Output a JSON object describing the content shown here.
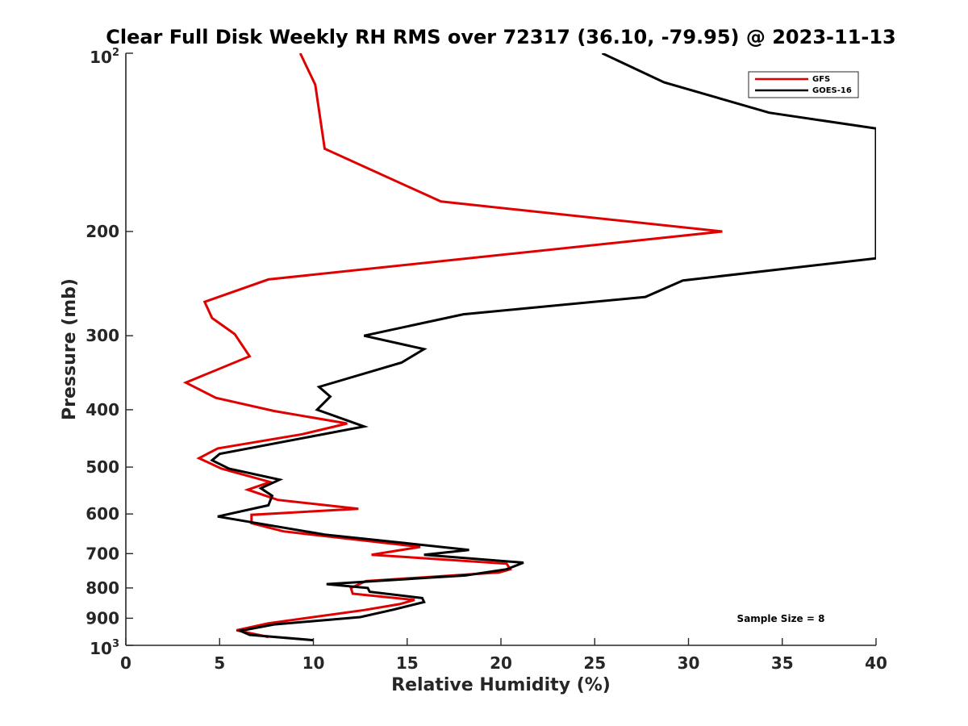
{
  "chart_data": {
    "type": "line",
    "title": "Clear Full Disk Weekly RH RMS over 72317 (36.10, -79.95) @ 2023-11-13",
    "xlabel": "Relative Humidity (%)",
    "ylabel": "Pressure (mb)",
    "xlim": [
      0,
      40
    ],
    "ylim": [
      100,
      1000
    ],
    "y_scale": "log",
    "y_reversed": true,
    "grid": false,
    "legend_position": "top-right",
    "x_ticks": [
      0,
      5,
      10,
      15,
      20,
      25,
      30,
      35,
      40
    ],
    "x_tick_labels": [
      "0",
      "5",
      "10",
      "15",
      "20",
      "25",
      "30",
      "35",
      "40"
    ],
    "y_ticks": [
      200,
      300,
      400,
      500,
      600,
      700,
      800,
      900
    ],
    "y_tick_labels": [
      "200",
      "300",
      "400",
      "500",
      "600",
      "700",
      "800",
      "900"
    ],
    "y_end_labels": {
      "top": "10",
      "top_exp": "2",
      "bottom": "10",
      "bottom_exp": "3"
    },
    "annotation": "Sample Size = 8",
    "series": [
      {
        "name": "GFS",
        "color": "#e00000",
        "points": [
          [
            9.3,
            100
          ],
          [
            10.1,
            113
          ],
          [
            10.6,
            145
          ],
          [
            16.8,
            178
          ],
          [
            31.8,
            200
          ],
          [
            7.6,
            241
          ],
          [
            4.2,
            263
          ],
          [
            4.6,
            280
          ],
          [
            5.8,
            298
          ],
          [
            6.6,
            325
          ],
          [
            3.2,
            360
          ],
          [
            4.8,
            382
          ],
          [
            7.9,
            402
          ],
          [
            11.8,
            422
          ],
          [
            9.4,
            440
          ],
          [
            4.9,
            465
          ],
          [
            3.9,
            483
          ],
          [
            5.1,
            503
          ],
          [
            7.7,
            530
          ],
          [
            6.5,
            546
          ],
          [
            8.1,
            568
          ],
          [
            12.4,
            588
          ],
          [
            6.7,
            602
          ],
          [
            6.7,
            622
          ],
          [
            8.4,
            642
          ],
          [
            15.7,
            682
          ],
          [
            13.1,
            703
          ],
          [
            20.3,
            728
          ],
          [
            20.5,
            744
          ],
          [
            19.9,
            753
          ],
          [
            12.8,
            779
          ],
          [
            12.0,
            800
          ],
          [
            12.1,
            818
          ],
          [
            15.4,
            838
          ],
          [
            14.6,
            852
          ],
          [
            12.7,
            872
          ],
          [
            7.6,
            918
          ],
          [
            5.9,
            943
          ],
          [
            7.6,
            968
          ]
        ]
      },
      {
        "name": "GOES-16",
        "color": "#000000",
        "points": [
          [
            25.4,
            100
          ],
          [
            28.7,
            112
          ],
          [
            34.3,
            126
          ],
          [
            40.0,
            134
          ],
          [
            40.0,
            222
          ],
          [
            29.7,
            242
          ],
          [
            27.7,
            258
          ],
          [
            18.0,
            276
          ],
          [
            12.7,
            300
          ],
          [
            15.9,
            316
          ],
          [
            14.7,
            333
          ],
          [
            10.3,
            366
          ],
          [
            10.9,
            380
          ],
          [
            10.2,
            400
          ],
          [
            12.7,
            427
          ],
          [
            5.0,
            475
          ],
          [
            4.6,
            487
          ],
          [
            5.5,
            503
          ],
          [
            8.2,
            525
          ],
          [
            7.2,
            543
          ],
          [
            7.8,
            559
          ],
          [
            7.6,
            580
          ],
          [
            4.9,
            606
          ],
          [
            10.6,
            650
          ],
          [
            14.9,
            672
          ],
          [
            18.3,
            690
          ],
          [
            15.9,
            703
          ],
          [
            21.2,
            725
          ],
          [
            20.3,
            744
          ],
          [
            18.1,
            762
          ],
          [
            10.7,
            788
          ],
          [
            12.9,
            800
          ],
          [
            13.0,
            812
          ],
          [
            15.8,
            832
          ],
          [
            15.9,
            845
          ],
          [
            14.3,
            870
          ],
          [
            12.5,
            896
          ],
          [
            7.9,
            922
          ],
          [
            6.1,
            945
          ],
          [
            6.6,
            960
          ],
          [
            10.0,
            980
          ]
        ]
      }
    ]
  }
}
